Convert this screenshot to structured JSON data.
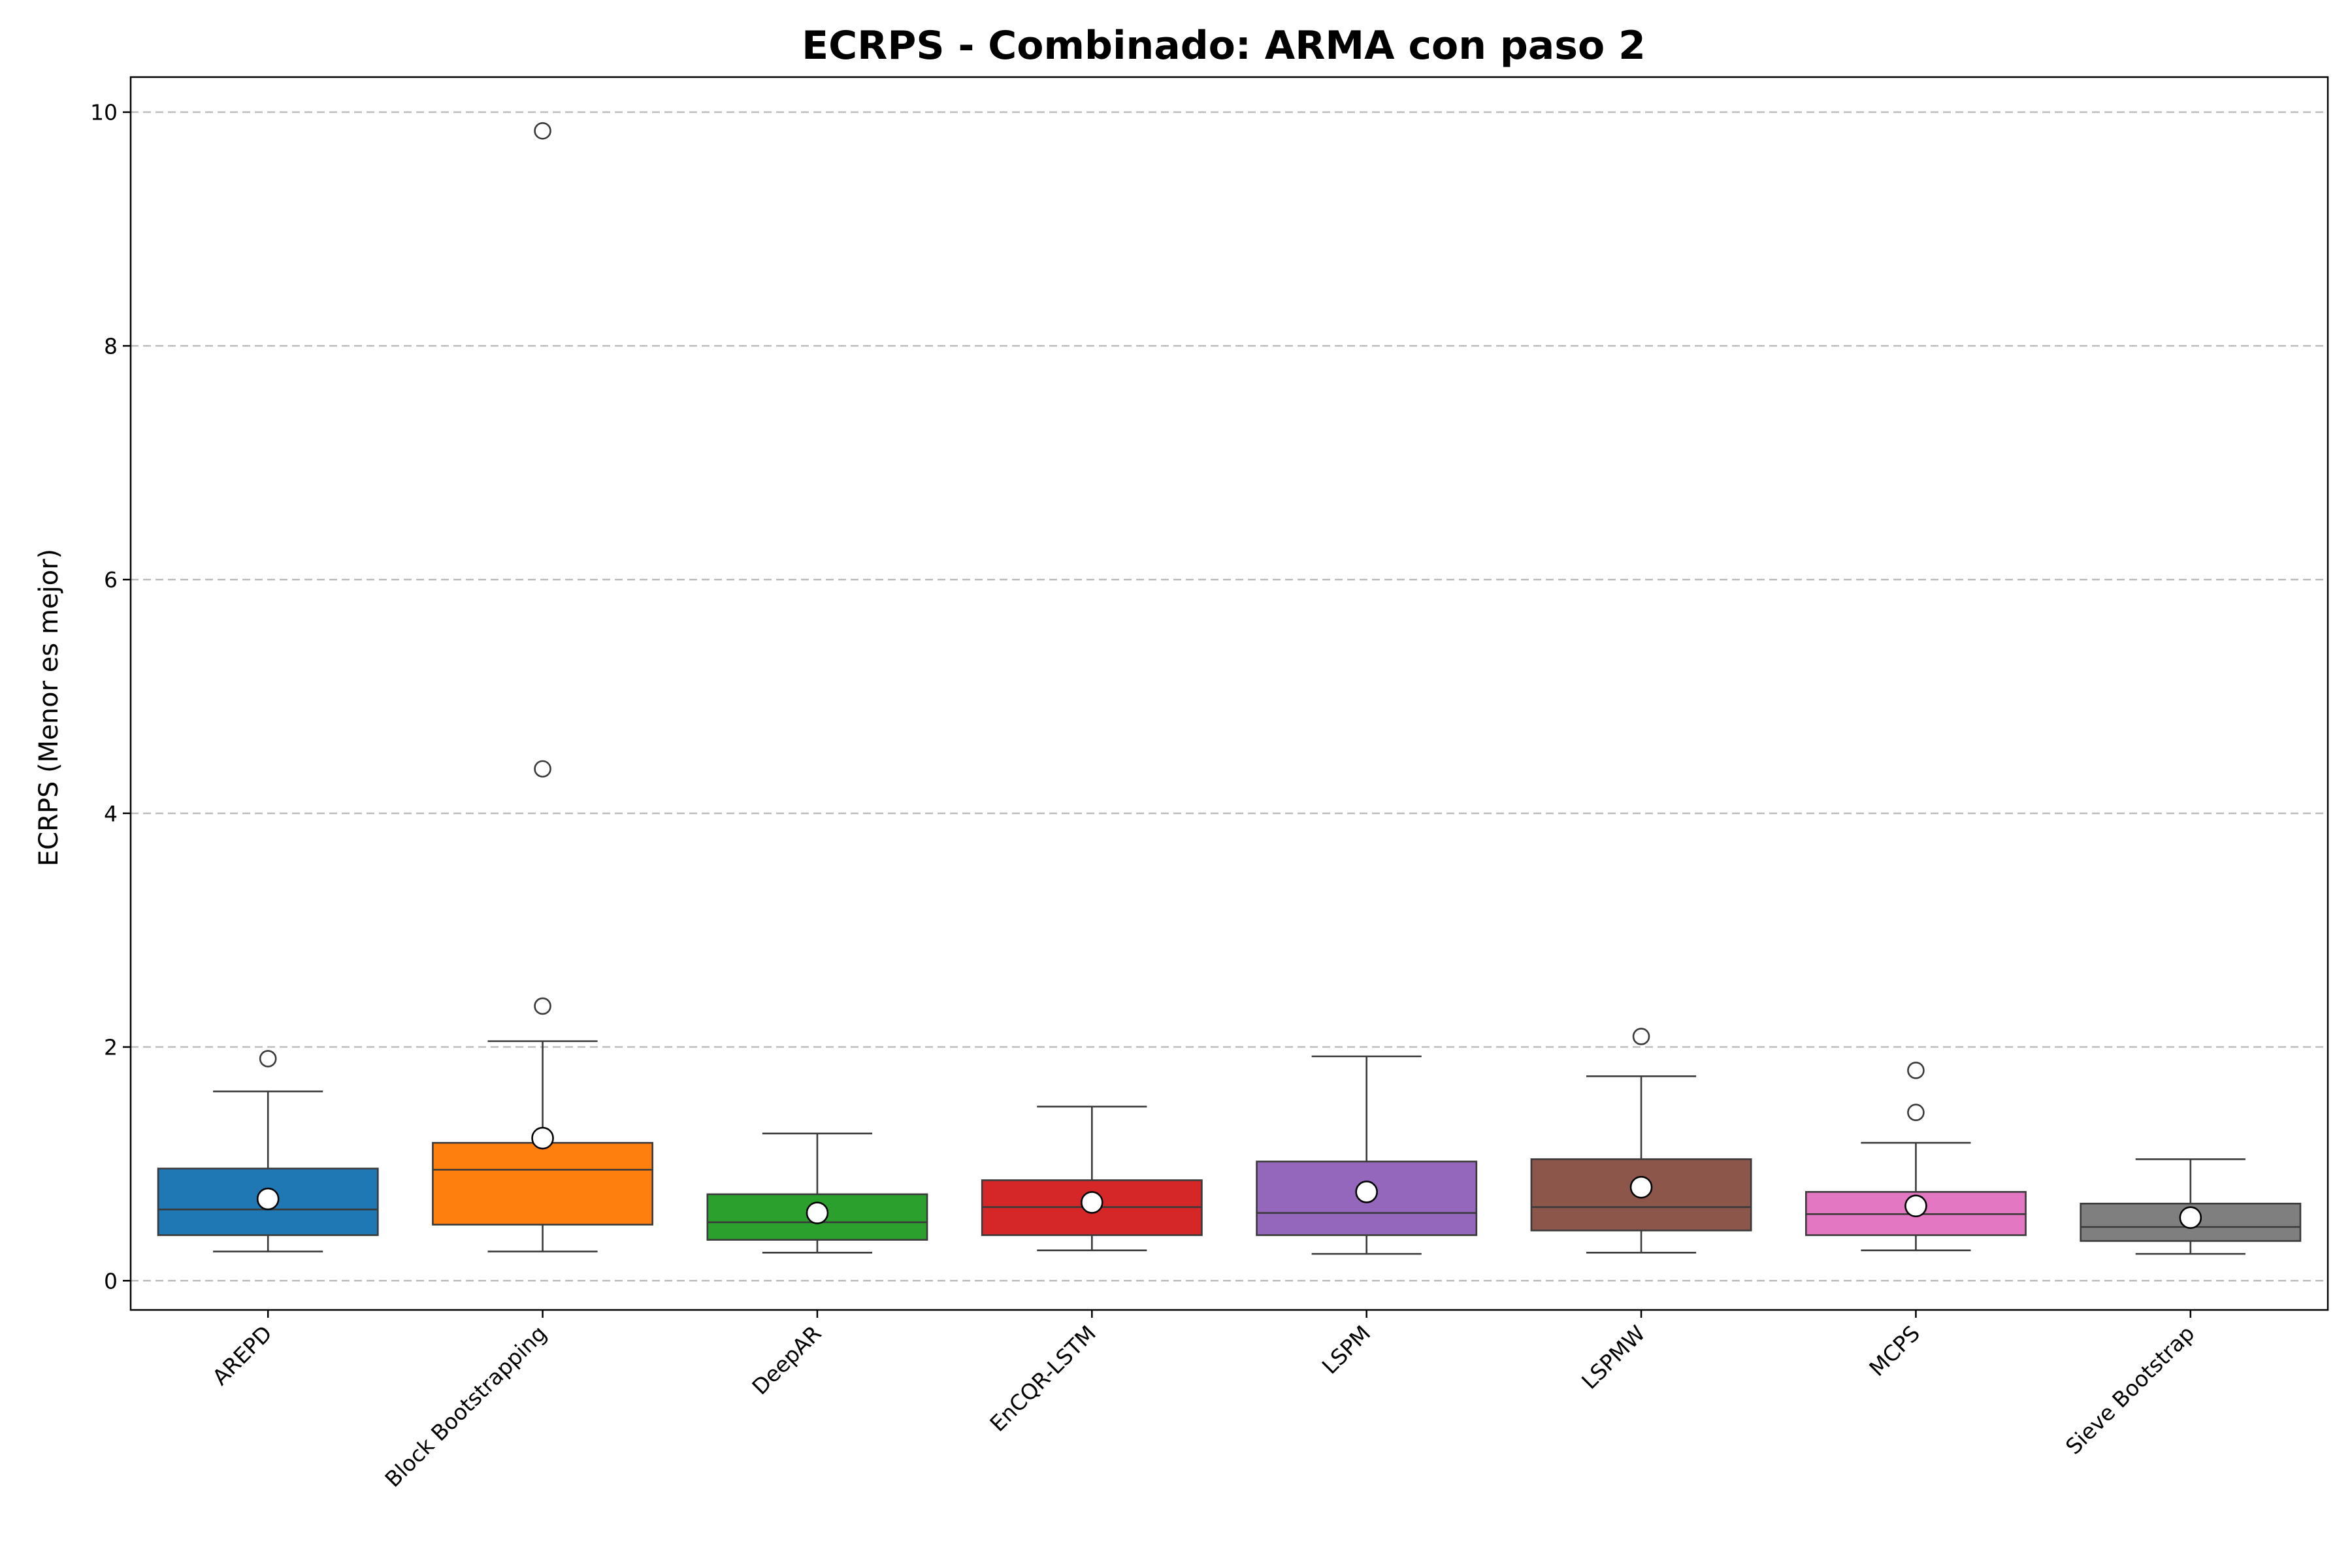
{
  "chart_data": {
    "type": "box",
    "title": "ECRPS - Combinado: ARMA con paso 2",
    "xlabel": "",
    "ylabel": "ECRPS (Menor es mejor)",
    "ylim": [
      -0.25,
      10.3
    ],
    "yticks": [
      0,
      2,
      4,
      6,
      8,
      10
    ],
    "grid": "y-dashed",
    "series": [
      {
        "name": "AREPD",
        "color": "#1f77b4",
        "q1": 0.39,
        "median": 0.61,
        "q3": 0.96,
        "whisker_low": 0.25,
        "whisker_high": 1.62,
        "mean": 0.7,
        "outliers": [
          1.9
        ]
      },
      {
        "name": "Block Bootstrapping",
        "color": "#ff7f0e",
        "q1": 0.48,
        "median": 0.95,
        "q3": 1.18,
        "whisker_low": 0.25,
        "whisker_high": 2.05,
        "mean": 1.22,
        "outliers": [
          2.35,
          4.38,
          9.84
        ]
      },
      {
        "name": "DeepAR",
        "color": "#2ca02c",
        "q1": 0.35,
        "median": 0.5,
        "q3": 0.74,
        "whisker_low": 0.24,
        "whisker_high": 1.26,
        "mean": 0.58,
        "outliers": []
      },
      {
        "name": "EnCQR-LSTM",
        "color": "#d62728",
        "q1": 0.39,
        "median": 0.63,
        "q3": 0.86,
        "whisker_low": 0.26,
        "whisker_high": 1.49,
        "mean": 0.67,
        "outliers": []
      },
      {
        "name": "LSPM",
        "color": "#9467bd",
        "q1": 0.39,
        "median": 0.58,
        "q3": 1.02,
        "whisker_low": 0.23,
        "whisker_high": 1.92,
        "mean": 0.76,
        "outliers": []
      },
      {
        "name": "LSPMW",
        "color": "#8c564b",
        "q1": 0.43,
        "median": 0.63,
        "q3": 1.04,
        "whisker_low": 0.24,
        "whisker_high": 1.75,
        "mean": 0.8,
        "outliers": [
          2.09
        ]
      },
      {
        "name": "MCPS",
        "color": "#e377c2",
        "q1": 0.39,
        "median": 0.57,
        "q3": 0.76,
        "whisker_low": 0.26,
        "whisker_high": 1.18,
        "mean": 0.64,
        "outliers": [
          1.44,
          1.8
        ]
      },
      {
        "name": "Sieve Bootstrap",
        "color": "#7f7f7f",
        "q1": 0.34,
        "median": 0.46,
        "q3": 0.66,
        "whisker_low": 0.23,
        "whisker_high": 1.04,
        "mean": 0.54,
        "outliers": []
      }
    ]
  }
}
